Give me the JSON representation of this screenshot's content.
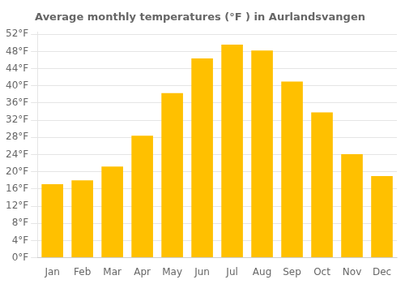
{
  "chart_data": {
    "type": "bar",
    "title": "Average monthly temperatures (°F ) in Aurlandsvangen",
    "categories": [
      "Jan",
      "Feb",
      "Mar",
      "Apr",
      "May",
      "Jun",
      "Jul",
      "Aug",
      "Sep",
      "Oct",
      "Nov",
      "Dec"
    ],
    "values": [
      17.1,
      18.0,
      21.2,
      28.4,
      38.3,
      46.4,
      49.6,
      48.2,
      41.0,
      33.8,
      24.1,
      19.0
    ],
    "color": "#FFC000",
    "ylim": [
      0,
      52.5
    ],
    "yticks": [
      {
        "value": 0,
        "label": "0°F"
      },
      {
        "value": 4,
        "label": "4°F"
      },
      {
        "value": 8,
        "label": "8°F"
      },
      {
        "value": 12,
        "label": "12°F"
      },
      {
        "value": 16,
        "label": "16°F"
      },
      {
        "value": 20,
        "label": "20°F"
      },
      {
        "value": 24,
        "label": "24°F"
      },
      {
        "value": 28,
        "label": "28°F"
      },
      {
        "value": 32,
        "label": "32°F"
      },
      {
        "value": 36,
        "label": "36°F"
      },
      {
        "value": 40,
        "label": "40°F"
      },
      {
        "value": 44,
        "label": "44°F"
      },
      {
        "value": 48,
        "label": "48°F"
      },
      {
        "value": 52,
        "label": "52°F"
      }
    ],
    "grid": true
  }
}
